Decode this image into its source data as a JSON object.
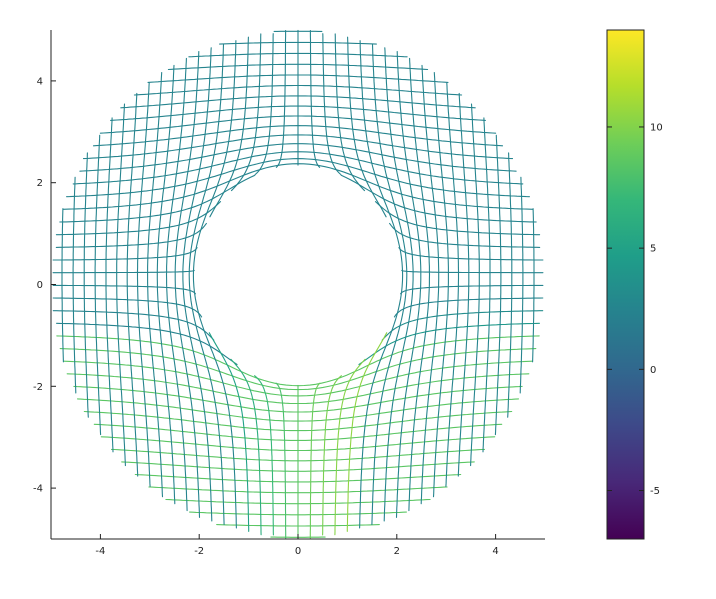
{
  "chart_data": {
    "type": "mesh",
    "title": "",
    "xlabel": "",
    "ylabel": "",
    "xlim": [
      -5,
      5
    ],
    "ylim": [
      -5,
      5
    ],
    "x_ticks": [
      -4,
      -2,
      0,
      2,
      4
    ],
    "y_ticks": [
      -4,
      -2,
      0,
      2,
      4
    ],
    "x_tick_labels": [
      "-4",
      "-2",
      "0",
      "2",
      "4"
    ],
    "y_tick_labels": [
      "-4",
      "-2",
      "0",
      "2",
      "4"
    ],
    "colormap": "viridis",
    "colormap_stops": [
      "#440154",
      "#482878",
      "#3e4989",
      "#31688e",
      "#26828e",
      "#1f9e89",
      "#35b779",
      "#6ece58",
      "#b5de2b",
      "#fde725"
    ],
    "outer_radius": 5,
    "hole_radius": 1,
    "color_range": [
      -7,
      14
    ],
    "colorbar": {
      "ticks": [
        -5,
        0,
        5,
        10
      ],
      "tick_labels": [
        "-5",
        "0",
        "5",
        "10"
      ]
    },
    "grid": false
  }
}
